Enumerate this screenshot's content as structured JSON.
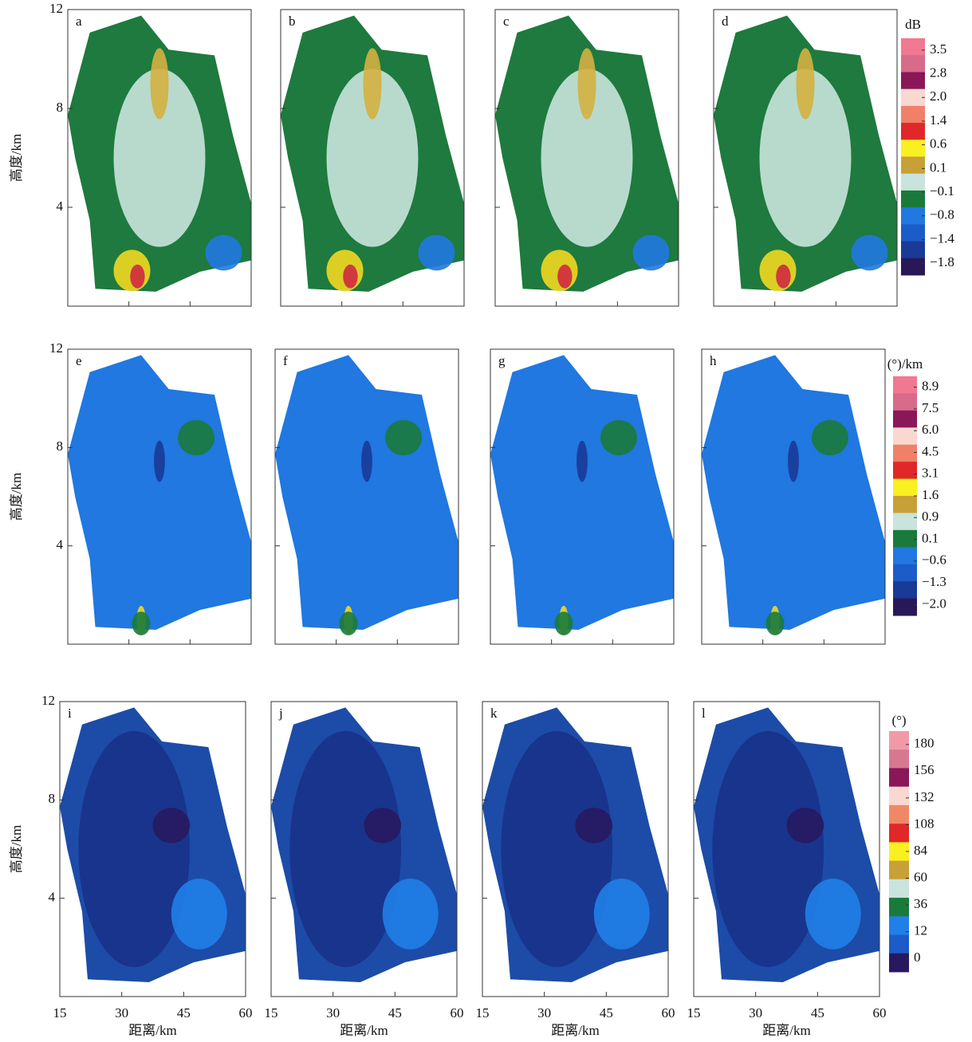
{
  "chart_data": [
    {
      "type": "heatmap",
      "panels": [
        "a",
        "b",
        "c",
        "d"
      ],
      "ylabel": "高度/km",
      "ylim": [
        0,
        12
      ],
      "yticks": [
        4,
        8,
        12
      ],
      "xlim": [
        15,
        60
      ],
      "xticks": [
        15,
        30,
        45,
        60
      ],
      "colorbar": {
        "unit": "dB",
        "colors": [
          "#f07890",
          "#d86a8a",
          "#8a1858",
          "#f8d8d0",
          "#f08068",
          "#e02828",
          "#f8f020",
          "#c8a038",
          "#c8e4dc",
          "#1a7a3c",
          "#2078e0",
          "#1c5cc8",
          "#1a3a98",
          "#281858"
        ],
        "ticks": [
          3.5,
          2.8,
          {
            "value": 2,
            "label": "2.0"
          },
          1.4,
          0.6,
          0.1,
          {
            "value": -0.1,
            "label": "−0.1"
          },
          {
            "value": -0.8,
            "label": "−0.8"
          },
          {
            "value": -1.4,
            "label": "−1.4"
          },
          {
            "value": -1.8,
            "label": "−1.8"
          }
        ]
      }
    },
    {
      "type": "heatmap",
      "panels": [
        "e",
        "f",
        "g",
        "h"
      ],
      "ylabel": "高度/km",
      "ylim": [
        0,
        12
      ],
      "yticks": [
        4,
        8,
        12
      ],
      "xlim": [
        15,
        60
      ],
      "xticks": [
        15,
        30,
        45,
        60
      ],
      "colorbar": {
        "unit": "(°)/km",
        "colors": [
          "#f07890",
          "#d86a8a",
          "#8a1858",
          "#f8d8d0",
          "#f08068",
          "#e02828",
          "#f8f020",
          "#c8a038",
          "#c8e4dc",
          "#1a7a3c",
          "#2078e0",
          "#1c5cc8",
          "#1a3a98",
          "#281858"
        ],
        "ticks": [
          8.9,
          7.5,
          {
            "value": 6,
            "label": "6.0"
          },
          4.5,
          3.1,
          1.6,
          0.9,
          0.1,
          {
            "value": -0.6,
            "label": "−0.6"
          },
          {
            "value": -1.3,
            "label": "−1.3"
          },
          {
            "value": -2,
            "label": "−2.0"
          }
        ]
      }
    },
    {
      "type": "heatmap",
      "panels": [
        "i",
        "j",
        "k",
        "l"
      ],
      "ylabel": "高度/km",
      "xlabel": "距离/km",
      "ylim": [
        0,
        12
      ],
      "yticks": [
        4,
        8,
        12
      ],
      "xlim": [
        15,
        60
      ],
      "xticks": [
        15,
        30,
        45,
        60
      ],
      "colorbar": {
        "unit": "(°)",
        "colors": [
          "#f09aa8",
          "#d87890",
          "#8a1858",
          "#f8d8d0",
          "#f08868",
          "#e02828",
          "#f8f020",
          "#c8a038",
          "#c8e4dc",
          "#1a7a3c",
          "#2080e8",
          "#1c5cc8",
          "#281860"
        ],
        "ticks": [
          180,
          156,
          132,
          108,
          84,
          60,
          36,
          12,
          0
        ]
      }
    }
  ]
}
